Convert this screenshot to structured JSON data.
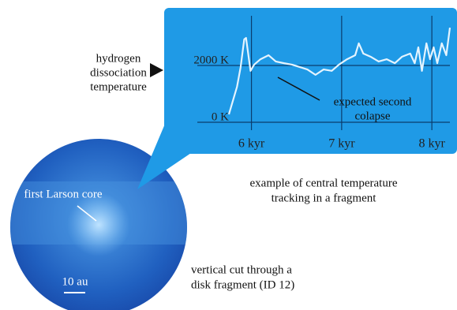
{
  "chart_data": {
    "type": "line",
    "x": [
      5.75,
      5.84,
      5.88,
      5.92,
      5.94,
      5.99,
      6.03,
      6.1,
      6.19,
      6.27,
      6.36,
      6.45,
      6.54,
      6.62,
      6.71,
      6.8,
      6.89,
      6.97,
      7.06,
      7.15,
      7.19,
      7.24,
      7.32,
      7.41,
      7.5,
      7.59,
      7.67,
      7.76,
      7.81,
      7.85,
      7.89,
      7.94,
      7.98,
      8.02,
      8.06,
      8.11,
      8.16,
      8.2
    ],
    "values": [
      280,
      1250,
      1940,
      2920,
      2970,
      1810,
      2030,
      2220,
      2360,
      2140,
      2080,
      2030,
      1940,
      1860,
      1670,
      1860,
      1810,
      2030,
      2220,
      2360,
      2780,
      2420,
      2310,
      2140,
      2220,
      2080,
      2310,
      2420,
      2080,
      2640,
      1810,
      2780,
      2220,
      2640,
      2080,
      2780,
      2360,
      3330
    ],
    "color": "#e4f4ff",
    "xlim": [
      5.4,
      8.2
    ],
    "ylim": [
      0,
      3750
    ],
    "xticks": [
      {
        "value": 6,
        "label": "6 kyr"
      },
      {
        "value": 7,
        "label": "7 kyr"
      },
      {
        "value": 8,
        "label": "8 kyr"
      }
    ],
    "yticks": [
      {
        "value": 0,
        "label": "0 K"
      },
      {
        "value": 2000,
        "label": "2000 K"
      }
    ],
    "grid": true,
    "annotations": {
      "hydrogen": [
        "hydrogen",
        "dissociation",
        "temperature"
      ],
      "collapse": [
        "expected second",
        "colapse"
      ],
      "caption": [
        "example of central temperature",
        "tracking in a fragment"
      ]
    }
  },
  "image": {
    "core_label": "first Larson core",
    "scale_label": "10 au",
    "caption": [
      "vertical cut through a",
      "disk fragment (ID 12)"
    ]
  }
}
